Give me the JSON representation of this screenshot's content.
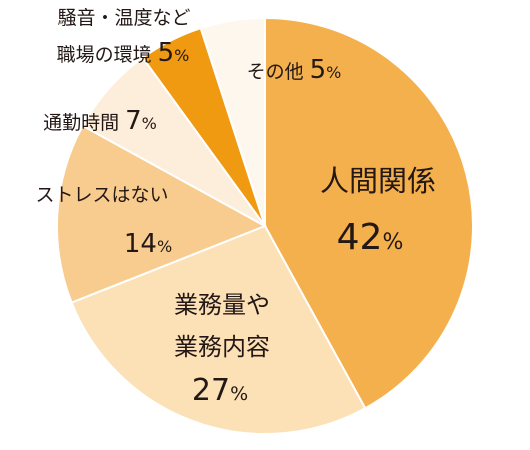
{
  "chart_data": {
    "type": "pie",
    "slices": [
      {
        "label": "人間関係",
        "value": 42,
        "value_label": "42",
        "color": "#F4B04D"
      },
      {
        "label_lines": [
          "業務量や",
          "業務内容"
        ],
        "value": 27,
        "value_label": "27",
        "color": "#FCE0B6"
      },
      {
        "label": "ストレスはない",
        "value": 14,
        "value_label": "14",
        "color": "#F8CC8F"
      },
      {
        "label": "通勤時間",
        "value": 7,
        "value_label": "7",
        "color": "#FDEEDB"
      },
      {
        "label_lines": [
          "騒音・温度など",
          "職場の環境"
        ],
        "value": 5,
        "value_label": "5",
        "color": "#EF9A11"
      },
      {
        "label": "その他",
        "value": 5,
        "value_label": "5",
        "color": "#FEF7EE"
      }
    ],
    "percent_sign": "%"
  }
}
